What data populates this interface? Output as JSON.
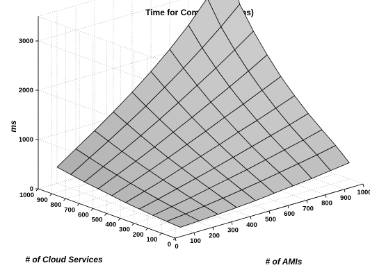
{
  "chart_data": {
    "type": "surface",
    "title": "Time for Combining (in ms)",
    "xlabel": "# of AMIs",
    "ylabel": "# of Cloud Services",
    "zlabel": "ms",
    "x": [
      100,
      200,
      300,
      400,
      500,
      600,
      700,
      800,
      900,
      1000
    ],
    "y": [
      100,
      200,
      300,
      400,
      500,
      600,
      700,
      800,
      900,
      1000
    ],
    "x_ticks": [
      "0",
      "100",
      "200",
      "300",
      "400",
      "500",
      "600",
      "700",
      "800",
      "900",
      "1000"
    ],
    "y_ticks": [
      "0",
      "100",
      "200",
      "300",
      "400",
      "500",
      "600",
      "700",
      "800",
      "900",
      "1000"
    ],
    "z_ticks": [
      "0",
      "1000",
      "2000",
      "3000"
    ],
    "xlim": [
      0,
      1000
    ],
    "ylim": [
      0,
      1000
    ],
    "zlim": [
      0,
      3500
    ],
    "grid": true,
    "z_rows_by_cloud_services": [
      [
        10,
        30,
        50,
        80,
        110,
        150,
        190,
        230,
        280,
        330
      ],
      [
        30,
        70,
        120,
        170,
        230,
        290,
        360,
        430,
        500,
        580
      ],
      [
        50,
        120,
        190,
        270,
        350,
        430,
        520,
        610,
        700,
        800
      ],
      [
        80,
        170,
        270,
        370,
        470,
        580,
        690,
        800,
        910,
        1030
      ],
      [
        110,
        230,
        350,
        480,
        610,
        740,
        880,
        1010,
        1150,
        1290
      ],
      [
        150,
        290,
        440,
        590,
        750,
        910,
        1080,
        1240,
        1410,
        1580
      ],
      [
        190,
        360,
        530,
        710,
        900,
        1090,
        1290,
        1490,
        1700,
        1920
      ],
      [
        230,
        430,
        630,
        840,
        1060,
        1290,
        1530,
        1770,
        2030,
        2300
      ],
      [
        280,
        510,
        740,
        980,
        1230,
        1500,
        1780,
        2080,
        2400,
        2750
      ],
      [
        330,
        590,
        850,
        1120,
        1410,
        1720,
        2060,
        2440,
        2880,
        3650
      ]
    ]
  }
}
